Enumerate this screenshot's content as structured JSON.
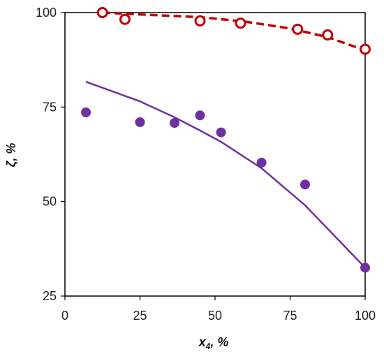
{
  "chart_data": {
    "type": "scatter",
    "xlabel": {
      "main": "x",
      "sub": "4",
      "suffix": ", %"
    },
    "ylabel": "ζ, %",
    "xlim": [
      0,
      100
    ],
    "ylim": [
      25,
      100
    ],
    "xticks": [
      0,
      25,
      50,
      75,
      100
    ],
    "yticks": [
      25,
      50,
      75,
      100
    ],
    "grid": false,
    "series": [
      {
        "kind": "points",
        "marker": "open-circle",
        "color": "#c00000",
        "x": [
          12.5,
          20,
          45,
          58.5,
          77.5,
          87.5,
          100
        ],
        "y": [
          100,
          98.2,
          97.8,
          97.2,
          95.6,
          94.1,
          90.3
        ]
      },
      {
        "kind": "line",
        "style": "dashed",
        "color": "#c00000",
        "x": [
          12.5,
          25,
          45,
          60,
          75,
          87.5,
          100
        ],
        "y": [
          100,
          99.5,
          98.8,
          97.6,
          95.8,
          93.5,
          90
        ]
      },
      {
        "kind": "points",
        "marker": "filled-circle",
        "color": "#7030a0",
        "x": [
          7,
          25,
          36.5,
          45,
          52,
          65.5,
          80,
          100
        ],
        "y": [
          73.6,
          71,
          70.8,
          72.8,
          68.3,
          60.3,
          54.5,
          32.5
        ]
      },
      {
        "kind": "line",
        "style": "solid",
        "color": "#7030a0",
        "x": [
          7,
          25,
          36.5,
          45,
          52,
          65.5,
          80,
          100
        ],
        "y": [
          81.7,
          76.5,
          72.3,
          68.8,
          65.8,
          58.8,
          49,
          32.5
        ]
      }
    ]
  }
}
